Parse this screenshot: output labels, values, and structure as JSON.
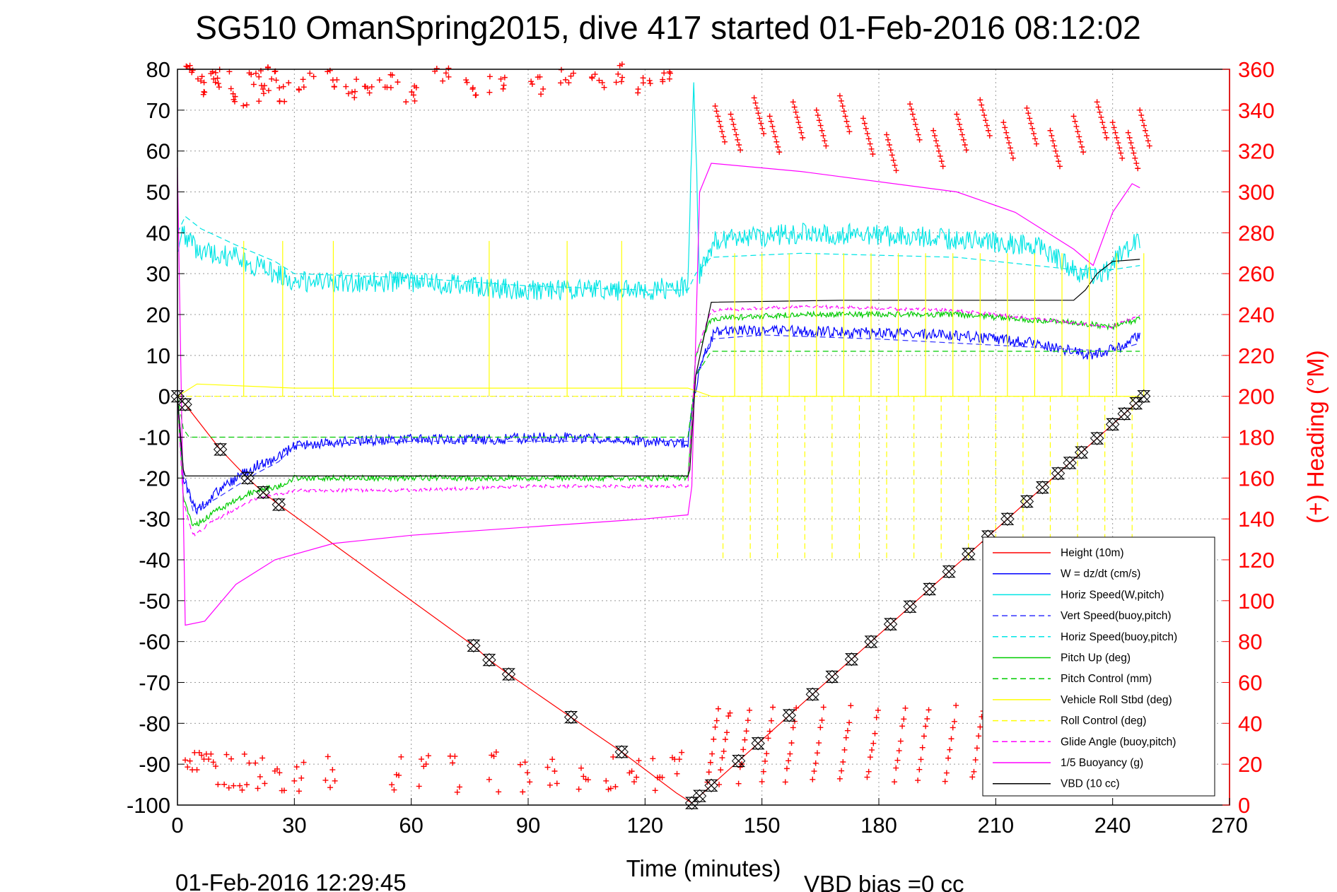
{
  "title": "SG510 OmanSpring2015, dive 417 started 01-Feb-2016 08:12:02",
  "footer": {
    "timestamp": "01-Feb-2016 12:29:45",
    "vbd_bias": "VBD bias =0 cc"
  },
  "chart_data": {
    "type": "line",
    "title": "SG510 OmanSpring2015, dive 417 started 01-Feb-2016 08:12:02",
    "xlabel": "Time (minutes)",
    "ylabel": "",
    "y2label": "(+) Heading (°M)",
    "xlim": [
      0,
      270
    ],
    "ylim": [
      -100,
      80
    ],
    "y2lim": [
      0,
      360
    ],
    "xticks": [
      0,
      30,
      60,
      90,
      120,
      150,
      180,
      210,
      240,
      270
    ],
    "yticks": [
      -100,
      -90,
      -80,
      -70,
      -60,
      -50,
      -40,
      -30,
      -20,
      -10,
      0,
      10,
      20,
      30,
      40,
      50,
      60,
      70,
      80
    ],
    "y2ticks": [
      0,
      20,
      40,
      60,
      80,
      100,
      120,
      140,
      160,
      180,
      200,
      220,
      240,
      260,
      280,
      300,
      320,
      340,
      360
    ],
    "grid": true,
    "legend_position": "bottom-right",
    "apogee_minutes": 132,
    "end_minutes": 248,
    "series": [
      {
        "name": "Height (10m)",
        "color": "#ff0000",
        "dash": "solid",
        "x": [
          0,
          2,
          11,
          18,
          22,
          26,
          76,
          80,
          85,
          101,
          114,
          128,
          132
        ],
        "y": [
          0,
          -2,
          -13,
          -20,
          -23.5,
          -26.5,
          -61,
          -64.5,
          -68,
          -78.5,
          -87,
          -97,
          -99.5
        ]
      },
      {
        "name": "W = dz/dt (cm/s)",
        "color": "#0000ff",
        "dash": "solid",
        "x": [
          0,
          1.5,
          5,
          12,
          20,
          26,
          30,
          45,
          60,
          80,
          100,
          120,
          131,
          132.5,
          135,
          138,
          160,
          200,
          220,
          235,
          242,
          247
        ],
        "y": [
          0,
          -20,
          -28,
          -22,
          -17,
          -15,
          -12,
          -11,
          -10.5,
          -10.5,
          -10,
          -11,
          -11.5,
          0,
          10,
          16,
          16,
          15,
          13,
          10,
          12,
          15
        ]
      },
      {
        "name": "Horiz Speed(W,pitch)",
        "color": "#00e5e5",
        "dash": "solid",
        "x": [
          0,
          1,
          5,
          15,
          25,
          30,
          60,
          90,
          120,
          131,
          132.5,
          134,
          138,
          160,
          190,
          220,
          232,
          238,
          243,
          247
        ],
        "y": [
          35,
          40,
          36,
          34,
          30,
          28,
          28,
          26,
          26,
          27,
          78,
          30,
          38,
          40,
          39,
          37,
          30,
          30,
          36,
          38
        ]
      },
      {
        "name": "Vert Speed(buoy,pitch)",
        "color": "#3333ff",
        "dash": "dashed",
        "x": [
          0,
          1.5,
          4,
          10,
          20,
          26,
          30,
          60,
          90,
          120,
          131,
          133,
          137,
          150,
          180,
          220,
          240,
          247
        ],
        "y": [
          0,
          -18,
          -28,
          -25,
          -19,
          -16,
          -12,
          -11,
          -11,
          -11,
          -11,
          5,
          14,
          15,
          14,
          12,
          11,
          13
        ]
      },
      {
        "name": "Horiz Speed(buoy,pitch)",
        "color": "#00e5e5",
        "dash": "dashed",
        "x": [
          0,
          2,
          6,
          15,
          25,
          30,
          60,
          90,
          120,
          131,
          133,
          137,
          160,
          200,
          230,
          240,
          247
        ],
        "y": [
          40,
          44,
          41,
          37,
          33,
          30,
          29,
          27,
          26,
          26,
          30,
          34,
          35,
          34,
          31,
          31,
          32
        ]
      },
      {
        "name": "Pitch Up (deg)",
        "color": "#00cc00",
        "dash": "solid",
        "x": [
          0,
          1.5,
          4,
          10,
          20,
          26,
          30,
          60,
          90,
          120,
          131,
          133,
          137,
          160,
          200,
          230,
          240,
          247
        ],
        "y": [
          0,
          -25,
          -32,
          -28,
          -23,
          -22,
          -20,
          -20,
          -20,
          -20,
          -20,
          10,
          19,
          20,
          20,
          18,
          17,
          19
        ]
      },
      {
        "name": "Pitch Control (mm)",
        "color": "#00cc00",
        "dash": "dashed",
        "x": [
          0,
          1.5,
          3,
          30,
          131,
          133,
          137,
          247
        ],
        "y": [
          0,
          -8,
          -10,
          -10,
          -10,
          5,
          11,
          11
        ]
      },
      {
        "name": "Vehicle Roll Stbd (deg)",
        "color": "#ffff00",
        "dash": "solid",
        "x": [
          0,
          5,
          30,
          131,
          137,
          247
        ],
        "y": [
          0,
          3,
          2,
          2,
          0,
          0
        ]
      },
      {
        "name": "Roll Control (deg)",
        "color": "#ffff00",
        "dash": "dashed",
        "x": [
          0,
          131,
          133,
          247
        ],
        "y": [
          0,
          0,
          0,
          0
        ]
      },
      {
        "name": "Glide Angle (buoy,pitch)",
        "color": "#ff00ff",
        "dash": "dashed",
        "x": [
          0,
          1.5,
          4,
          10,
          20,
          26,
          30,
          60,
          90,
          120,
          131,
          133,
          137,
          160,
          200,
          230,
          240,
          247
        ],
        "y": [
          0,
          -26,
          -34,
          -30,
          -25,
          -24,
          -23,
          -23,
          -22,
          -22,
          -22,
          10,
          21,
          22,
          21,
          18,
          17,
          20
        ]
      },
      {
        "name": "1/5 Buoyancy (g)",
        "color": "#ff00ff",
        "dash": "solid",
        "x": [
          0,
          2,
          7,
          15,
          25,
          40,
          60,
          90,
          120,
          131,
          132,
          134,
          137,
          160,
          200,
          215,
          230,
          235,
          240,
          245,
          247
        ],
        "y": [
          56,
          -56,
          -55,
          -46,
          -40,
          -36,
          -34,
          -32,
          -30,
          -29,
          -22,
          50,
          57,
          55,
          50,
          45,
          36,
          32,
          45,
          52,
          51
        ]
      },
      {
        "name": "VBD (10 cc)",
        "color": "#000000",
        "dash": "solid",
        "x": [
          0,
          1.5,
          2,
          131,
          131.5,
          132,
          133,
          137,
          170,
          230,
          233,
          236,
          240,
          247
        ],
        "y": [
          0,
          -18,
          -19.5,
          -19.5,
          -18,
          -10,
          5,
          23,
          23.5,
          23.5,
          26,
          30,
          33,
          33.5
        ]
      }
    ],
    "markers": {
      "name": "GC",
      "descent_x": [
        0,
        2,
        11,
        18,
        22,
        26,
        76,
        80,
        85,
        101,
        114
      ],
      "ascent_x": [
        132,
        134,
        137,
        144,
        149,
        157,
        163,
        168,
        173,
        178,
        183,
        188,
        193,
        198,
        203,
        208,
        213,
        218,
        222,
        226,
        229,
        232,
        236,
        240,
        243,
        246,
        248
      ]
    },
    "heading_right_axis": {
      "name": "Heading",
      "color": "#ff0000",
      "descent": {
        "x": [
          2,
          5,
          8,
          12,
          16,
          20,
          22,
          25,
          28,
          33,
          40,
          45,
          50,
          55,
          60,
          68,
          75,
          82,
          92,
          100,
          108,
          114,
          120,
          125
        ],
        "y": [
          357,
          352,
          358,
          355,
          347,
          356,
          348,
          357,
          349,
          354,
          356,
          351,
          353,
          355,
          349,
          356,
          351,
          353,
          352,
          356,
          355,
          358,
          351,
          357
        ]
      },
      "ascent": {
        "x": [
          138,
          142,
          148,
          152,
          158,
          164,
          170,
          176,
          182,
          188,
          194,
          200,
          206,
          212,
          218,
          224,
          230,
          236,
          240,
          244,
          247
        ],
        "y": [
          342,
          338,
          346,
          337,
          344,
          340,
          347,
          336,
          328,
          343,
          330,
          338,
          345,
          334,
          341,
          330,
          337,
          344,
          334,
          329,
          340
        ]
      }
    }
  }
}
